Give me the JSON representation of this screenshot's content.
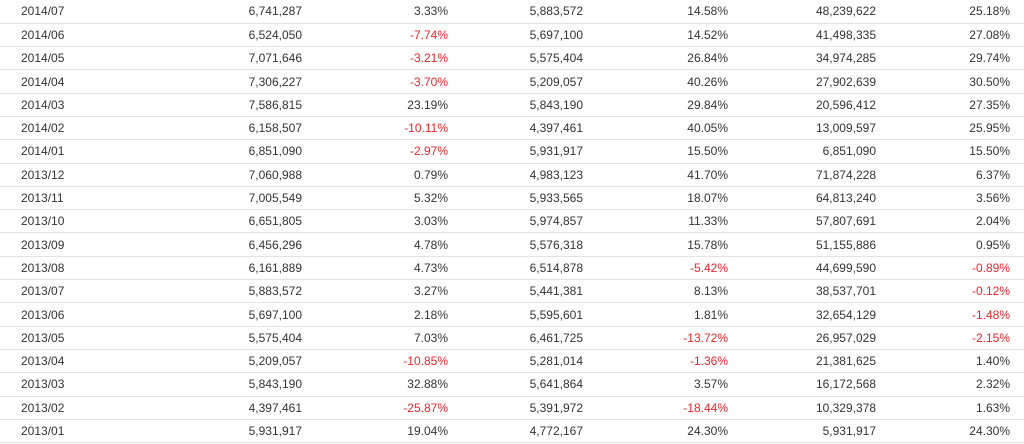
{
  "colors": {
    "text": "#333333",
    "negative": "#e8262a",
    "row_divider": "#e3e3e3",
    "background": "#ffffff"
  },
  "table": {
    "rows": [
      [
        "2014/07",
        "6,741,287",
        "3.33%",
        "5,883,572",
        "14.58%",
        "48,239,622",
        "25.18%"
      ],
      [
        "2014/06",
        "6,524,050",
        "-7.74%",
        "5,697,100",
        "14.52%",
        "41,498,335",
        "27.08%"
      ],
      [
        "2014/05",
        "7,071,646",
        "-3.21%",
        "5,575,404",
        "26.84%",
        "34,974,285",
        "29.74%"
      ],
      [
        "2014/04",
        "7,306,227",
        "-3.70%",
        "5,209,057",
        "40.26%",
        "27,902,639",
        "30.50%"
      ],
      [
        "2014/03",
        "7,586,815",
        "23.19%",
        "5,843,190",
        "29.84%",
        "20,596,412",
        "27.35%"
      ],
      [
        "2014/02",
        "6,158,507",
        "-10.11%",
        "4,397,461",
        "40.05%",
        "13,009,597",
        "25.95%"
      ],
      [
        "2014/01",
        "6,851,090",
        "-2.97%",
        "5,931,917",
        "15.50%",
        "6,851,090",
        "15.50%"
      ],
      [
        "2013/12",
        "7,060,988",
        "0.79%",
        "4,983,123",
        "41.70%",
        "71,874,228",
        "6.37%"
      ],
      [
        "2013/11",
        "7,005,549",
        "5.32%",
        "5,933,565",
        "18.07%",
        "64,813,240",
        "3.56%"
      ],
      [
        "2013/10",
        "6,651,805",
        "3.03%",
        "5,974,857",
        "11.33%",
        "57,807,691",
        "2.04%"
      ],
      [
        "2013/09",
        "6,456,296",
        "4.78%",
        "5,576,318",
        "15.78%",
        "51,155,886",
        "0.95%"
      ],
      [
        "2013/08",
        "6,161,889",
        "4.73%",
        "6,514,878",
        "-5.42%",
        "44,699,590",
        "-0.89%"
      ],
      [
        "2013/07",
        "5,883,572",
        "3.27%",
        "5,441,381",
        "8.13%",
        "38,537,701",
        "-0.12%"
      ],
      [
        "2013/06",
        "5,697,100",
        "2.18%",
        "5,595,601",
        "1.81%",
        "32,654,129",
        "-1.48%"
      ],
      [
        "2013/05",
        "5,575,404",
        "7.03%",
        "6,461,725",
        "-13.72%",
        "26,957,029",
        "-2.15%"
      ],
      [
        "2013/04",
        "5,209,057",
        "-10.85%",
        "5,281,014",
        "-1.36%",
        "21,381,625",
        "1.40%"
      ],
      [
        "2013/03",
        "5,843,190",
        "32.88%",
        "5,641,864",
        "3.57%",
        "16,172,568",
        "2.32%"
      ],
      [
        "2013/02",
        "4,397,461",
        "-25.87%",
        "5,391,972",
        "-18.44%",
        "10,329,378",
        "1.63%"
      ],
      [
        "2013/01",
        "5,931,917",
        "19.04%",
        "4,772,167",
        "24.30%",
        "5,931,917",
        "24.30%"
      ]
    ]
  }
}
